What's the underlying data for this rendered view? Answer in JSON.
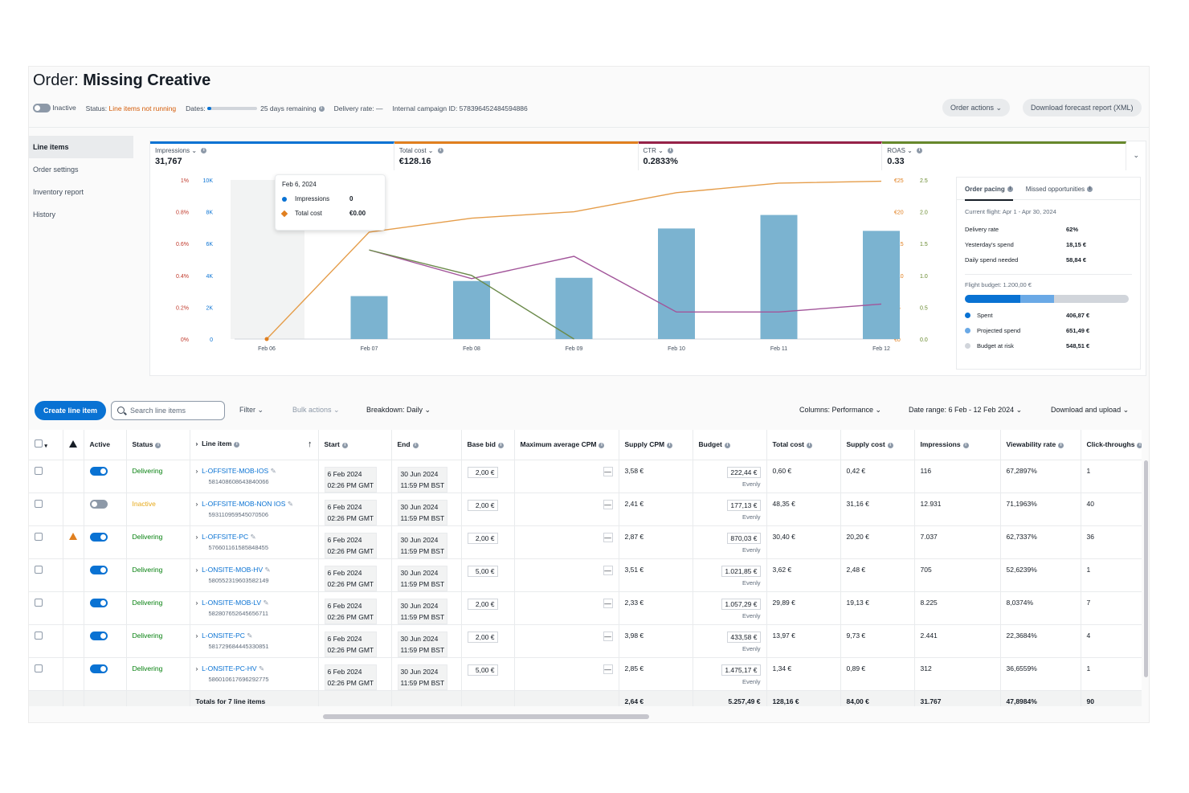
{
  "header": {
    "title_prefix": "Order:",
    "title_name": "Missing Creative",
    "toggle_label": "Inactive",
    "status_label": "Status:",
    "status_value": "Line items not running",
    "dates_label": "Dates:",
    "dates_remaining": "25 days remaining",
    "delivery_rate": "Delivery rate: —",
    "campaign_id": "Internal campaign ID: 578396452484594886",
    "dates_progress": 0.08,
    "order_actions": "Order actions",
    "download_forecast": "Download forecast report (XML)"
  },
  "sidebar": {
    "items": [
      "Line items",
      "Order settings",
      "Inventory report",
      "History"
    ]
  },
  "metrics": [
    {
      "label": "Impressions",
      "value": "31,767",
      "color": "#0972d3"
    },
    {
      "label": "Total cost",
      "value": "€128.16",
      "color": "#e07f1f"
    },
    {
      "label": "CTR",
      "value": "0.2833%",
      "color": "#962249"
    },
    {
      "label": "ROAS",
      "value": "0.33",
      "color": "#67882c"
    }
  ],
  "tooltip": {
    "date": "Feb 6, 2024",
    "rows": [
      {
        "name": "Impressions",
        "value": "0"
      },
      {
        "name": "Total cost",
        "value": "€0.00"
      }
    ]
  },
  "chart_data": {
    "type": "bar",
    "categories": [
      "Feb 06",
      "Feb 07",
      "Feb 08",
      "Feb 09",
      "Feb 10",
      "Feb 11",
      "Feb 12"
    ],
    "y_left_ticks_ctr": [
      "1%",
      "0.8%",
      "0.6%",
      "0.4%",
      "0.2%",
      "0%"
    ],
    "y_left_ticks_impr": [
      "10K",
      "8K",
      "6K",
      "4K",
      "2K",
      "0"
    ],
    "y_right_ticks_cost": [
      "€25",
      "€20",
      "€15",
      "€10",
      "€5",
      "€0"
    ],
    "y_right_ticks_roas": [
      "2.5",
      "2.0",
      "1.5",
      "1.0",
      "0.5",
      "0.0"
    ],
    "ylim_impressions": [
      0,
      10000
    ],
    "series": [
      {
        "name": "Impressions",
        "kind": "bar",
        "color": "#7bb3d0",
        "values": [
          0,
          2700,
          3650,
          3850,
          6950,
          7800,
          6800
        ]
      },
      {
        "name": "Total cost",
        "kind": "line",
        "color": "#e59d4a",
        "ylim": [
          0,
          25
        ],
        "values": [
          0,
          16.8,
          19,
          20,
          23,
          24.5,
          24.8
        ]
      },
      {
        "name": "CTR",
        "kind": "line",
        "color": "#a2559a",
        "ylim": [
          0,
          1
        ],
        "values": [
          null,
          0.56,
          0.38,
          0.52,
          0.17,
          0.17,
          0.22
        ]
      },
      {
        "name": "ROAS",
        "kind": "line",
        "color": "#6b8a4a",
        "ylim": [
          0,
          2.5
        ],
        "values": [
          null,
          1.4,
          1.0,
          0.0,
          null,
          null,
          null
        ]
      }
    ]
  },
  "pacing": {
    "tab_active": "Order pacing",
    "tab_other": "Missed opportunities",
    "flight": "Current flight: Apr 1 - Apr 30, 2024",
    "rows": [
      {
        "k": "Delivery rate",
        "v": "62%"
      },
      {
        "k": "Yesterday's spend",
        "v": "18,15 €"
      },
      {
        "k": "Daily spend needed",
        "v": "58,84 €"
      }
    ],
    "budget_label": "Flight budget: 1.200,00 €",
    "spent_fraction": 0.339,
    "projected_fraction": 0.543,
    "legend": [
      {
        "k": "Spent",
        "v": "406,87 €",
        "color": "#0972d3"
      },
      {
        "k": "Projected spend",
        "v": "651,49 €",
        "color": "#6aa9e6"
      },
      {
        "k": "Budget at risk",
        "v": "548,51 €",
        "color": "#d1d5db"
      }
    ]
  },
  "toolbar": {
    "create": "Create line item",
    "search_placeholder": "Search line items",
    "filter": "Filter",
    "bulk": "Bulk actions",
    "breakdown": "Breakdown: Daily",
    "columns": "Columns: Performance",
    "date_range": "Date range: 6 Feb - 12 Feb 2024",
    "download": "Download and upload"
  },
  "table": {
    "headers": [
      "Active",
      "Status",
      "Line item",
      "Start",
      "End",
      "Base bid",
      "Maximum average CPM",
      "Supply CPM",
      "Budget",
      "Total cost",
      "Supply cost",
      "Impressions",
      "Viewability rate",
      "Click-throughs"
    ],
    "rows": [
      {
        "active": true,
        "warn": false,
        "status": "Delivering",
        "name": "L-OFFSITE-MOB-IOS",
        "id": "581408608643840066",
        "start": "6 Feb 2024",
        "start_t": "02:26 PM GMT",
        "end": "30 Jun 2024",
        "end_t": "11:59 PM BST",
        "bid": "2,00 €",
        "cpm": "3,58 €",
        "budget": "222,44 €",
        "pace": "Evenly",
        "cost": "0,60 €",
        "supply": "0,42 €",
        "impr": "116",
        "view": "67,2897%",
        "clicks": "1"
      },
      {
        "active": false,
        "warn": false,
        "status": "Inactive",
        "name": "L-OFFSITE-MOB-NON IOS",
        "id": "593110959545070506",
        "start": "6 Feb 2024",
        "start_t": "02:26 PM GMT",
        "end": "30 Jun 2024",
        "end_t": "11:59 PM BST",
        "bid": "2,00 €",
        "cpm": "2,41 €",
        "budget": "177,13 €",
        "pace": "Evenly",
        "cost": "48,35 €",
        "supply": "31,16 €",
        "impr": "12.931",
        "view": "71,1963%",
        "clicks": "40"
      },
      {
        "active": true,
        "warn": true,
        "status": "Delivering",
        "name": "L-OFFSITE-PC",
        "id": "576601161585848455",
        "start": "6 Feb 2024",
        "start_t": "02:26 PM GMT",
        "end": "30 Jun 2024",
        "end_t": "11:59 PM BST",
        "bid": "2,00 €",
        "cpm": "2,87 €",
        "budget": "870,03 €",
        "pace": "Evenly",
        "cost": "30,40 €",
        "supply": "20,20 €",
        "impr": "7.037",
        "view": "62,7337%",
        "clicks": "36"
      },
      {
        "active": true,
        "warn": false,
        "status": "Delivering",
        "name": "L-ONSITE-MOB-HV",
        "id": "580552319603582149",
        "start": "6 Feb 2024",
        "start_t": "02:26 PM GMT",
        "end": "30 Jun 2024",
        "end_t": "11:59 PM BST",
        "bid": "5,00 €",
        "cpm": "3,51 €",
        "budget": "1.021,85 €",
        "pace": "Evenly",
        "cost": "3,62 €",
        "supply": "2,48 €",
        "impr": "705",
        "view": "52,6239%",
        "clicks": "1"
      },
      {
        "active": true,
        "warn": false,
        "status": "Delivering",
        "name": "L-ONSITE-MOB-LV",
        "id": "582807652645656711",
        "start": "6 Feb 2024",
        "start_t": "02:26 PM GMT",
        "end": "30 Jun 2024",
        "end_t": "11:59 PM BST",
        "bid": "2,00 €",
        "cpm": "2,33 €",
        "budget": "1.057,29 €",
        "pace": "Evenly",
        "cost": "29,89 €",
        "supply": "19,13 €",
        "impr": "8.225",
        "view": "8,0374%",
        "clicks": "7"
      },
      {
        "active": true,
        "warn": false,
        "status": "Delivering",
        "name": "L-ONSITE-PC",
        "id": "581729684445330851",
        "start": "6 Feb 2024",
        "start_t": "02:26 PM GMT",
        "end": "30 Jun 2024",
        "end_t": "11:59 PM BST",
        "bid": "2,00 €",
        "cpm": "3,98 €",
        "budget": "433,58 €",
        "pace": "Evenly",
        "cost": "13,97 €",
        "supply": "9,73 €",
        "impr": "2.441",
        "view": "22,3684%",
        "clicks": "4"
      },
      {
        "active": true,
        "warn": false,
        "status": "Delivering",
        "name": "L-ONSITE-PC-HV",
        "id": "586010617696292775",
        "start": "6 Feb 2024",
        "start_t": "02:26 PM GMT",
        "end": "30 Jun 2024",
        "end_t": "11:59 PM BST",
        "bid": "5,00 €",
        "cpm": "2,85 €",
        "budget": "1.475,17 €",
        "pace": "Evenly",
        "cost": "1,34 €",
        "supply": "0,89 €",
        "impr": "312",
        "view": "36,6559%",
        "clicks": "1"
      }
    ],
    "totals": {
      "label": "Totals for 7 line items",
      "cpm": "2,64 €",
      "budget": "5.257,49 €",
      "cost": "128,16 €",
      "supply": "84,00 €",
      "impr": "31.767",
      "view": "47,8984%",
      "clicks": "90"
    }
  },
  "colors": {
    "accent": "#0972d3",
    "delivering": "#037f0c",
    "inactive": "#e6a817"
  }
}
